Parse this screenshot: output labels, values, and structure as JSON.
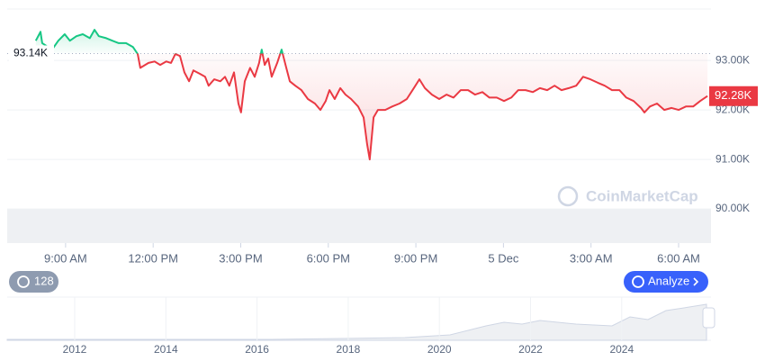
{
  "chart_data": {
    "type": "line",
    "x": [
      7.98,
      8.14,
      8.2,
      8.54,
      8.75,
      8.97,
      9.15,
      9.37,
      9.59,
      9.83,
      9.99,
      10.14,
      10.39,
      10.6,
      10.82,
      11.07,
      11.31,
      11.47,
      11.56,
      11.84,
      12.05,
      12.24,
      12.45,
      12.61,
      12.76,
      12.92,
      13.07,
      13.23,
      13.38,
      13.6,
      13.78,
      13.9,
      14.09,
      14.3,
      14.46,
      14.61,
      14.77,
      14.92,
      15.01,
      15.14,
      15.32,
      15.48,
      15.63,
      15.72,
      15.82,
      15.94,
      16.06,
      16.25,
      16.4,
      16.56,
      16.68,
      16.87,
      17.08,
      17.3,
      17.54,
      17.73,
      17.91,
      18.04,
      18.22,
      18.41,
      18.59,
      18.78,
      19.02,
      19.21,
      19.33,
      19.42,
      19.55,
      19.7,
      19.95,
      20.19,
      20.44,
      20.69,
      20.93,
      21.12,
      21.31,
      21.55,
      21.8,
      22.05,
      22.29,
      22.54,
      22.79,
      23.03,
      23.28,
      23.52,
      23.77,
      24.02,
      24.27,
      24.51,
      24.76,
      25.01,
      25.25,
      25.5,
      25.75,
      25.99,
      26.24,
      26.49,
      26.73,
      26.98,
      27.23,
      27.47,
      27.72,
      27.97,
      28.21,
      28.46,
      28.71,
      28.83,
      29.02,
      29.26,
      29.51,
      29.76,
      30.0,
      30.25,
      30.5,
      30.74,
      30.99
    ],
    "values": [
      93.4,
      93.58,
      93.35,
      93.22,
      93.4,
      93.53,
      93.4,
      93.49,
      93.53,
      93.45,
      93.62,
      93.49,
      93.45,
      93.4,
      93.35,
      93.35,
      93.27,
      93.13,
      92.85,
      92.95,
      92.98,
      92.91,
      92.98,
      92.95,
      93.13,
      93.09,
      92.76,
      92.58,
      92.8,
      92.73,
      92.67,
      92.49,
      92.62,
      92.58,
      92.67,
      92.49,
      92.76,
      92.13,
      91.95,
      92.58,
      92.85,
      92.67,
      92.95,
      93.22,
      92.91,
      93.04,
      92.67,
      92.95,
      93.22,
      92.85,
      92.58,
      92.49,
      92.4,
      92.22,
      92.13,
      92.0,
      92.18,
      92.4,
      92.22,
      92.44,
      92.31,
      92.22,
      92.07,
      91.85,
      91.31,
      91.0,
      91.85,
      92.0,
      92.0,
      92.07,
      92.13,
      92.22,
      92.44,
      92.62,
      92.44,
      92.31,
      92.22,
      92.31,
      92.25,
      92.4,
      92.4,
      92.31,
      92.36,
      92.25,
      92.25,
      92.18,
      92.25,
      92.4,
      92.4,
      92.36,
      92.44,
      92.4,
      92.49,
      92.4,
      92.44,
      92.49,
      92.67,
      92.62,
      92.55,
      92.49,
      92.4,
      92.4,
      92.25,
      92.18,
      92.04,
      91.95,
      92.07,
      92.13,
      92.0,
      92.04,
      92.0,
      92.07,
      92.07,
      92.18,
      92.28
    ],
    "up_color": "#16c784",
    "down_color": "#ea3943",
    "baseline": {
      "value": 93.14,
      "label": "93.14K"
    },
    "last_price": {
      "value": 92.28,
      "label": "92.28K"
    },
    "xlim": [
      7.0,
      31.11
    ],
    "xticks": [
      {
        "value": 9,
        "label": "9:00 AM"
      },
      {
        "value": 12,
        "label": "12:00 PM"
      },
      {
        "value": 15,
        "label": "3:00 PM"
      },
      {
        "value": 18,
        "label": "6:00 PM"
      },
      {
        "value": 21,
        "label": "9:00 PM"
      },
      {
        "value": 24,
        "label": "5 Dec"
      },
      {
        "value": 27,
        "label": "3:00 AM"
      },
      {
        "value": 30,
        "label": "6:00 AM"
      }
    ],
    "ylim": [
      89.31,
      94.04
    ],
    "yticks": [
      {
        "value": 90,
        "label": "90.00K"
      },
      {
        "value": 91,
        "label": "91.00K"
      },
      {
        "value": 92,
        "label": "92.00K"
      },
      {
        "value": 93,
        "label": "93.00K"
      }
    ],
    "grid": true,
    "watermark": "CoinMarketCap",
    "history_button": "128",
    "analyze_button": "Analyze",
    "navigator_years": [
      "2012",
      "2014",
      "2016",
      "2018",
      "2020",
      "2022",
      "2024"
    ]
  }
}
